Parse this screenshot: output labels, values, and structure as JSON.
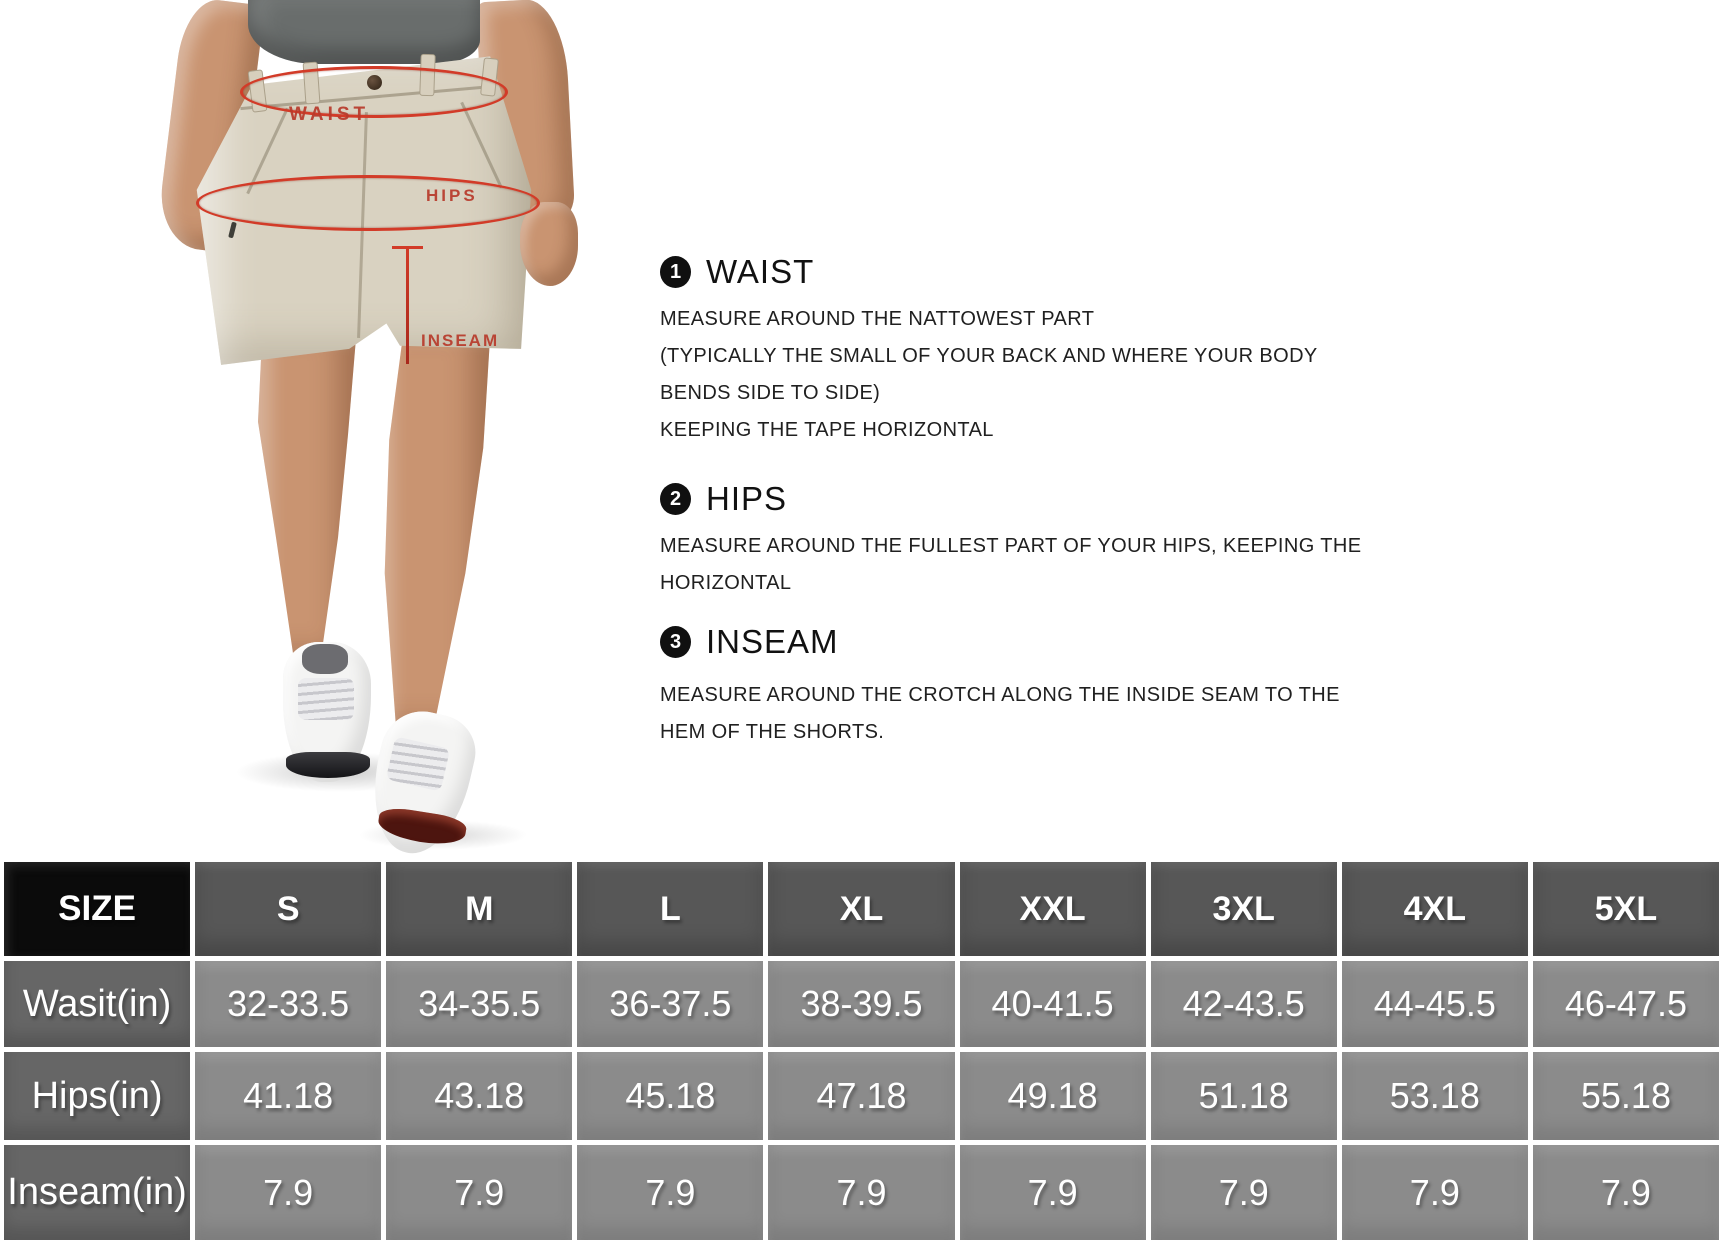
{
  "figure": {
    "annotations": {
      "waist": "WAIST",
      "hips": "HIPS",
      "inseam": "INSEAM"
    },
    "colors": {
      "annotation_red": "#d23b28",
      "label_red": "#b83a2b",
      "shorts_khaki": "#d9d2c1",
      "shirt_gray": "#696d6c",
      "skin_tan": "#c99471",
      "shoe_white": "#f4f4f3",
      "sole_maroon": "#4d150f"
    }
  },
  "instructions": {
    "sections": [
      {
        "number": "1",
        "title": "WAIST",
        "lines": [
          "MEASURE AROUND THE NATTOWEST PART",
          "(TYPICALLY THE SMALL OF YOUR BACK AND WHERE YOUR BODY",
          "BENDS SIDE TO SIDE)",
          "KEEPING THE TAPE HORIZONTAL"
        ]
      },
      {
        "number": "2",
        "title": "HIPS",
        "lines": [
          "MEASURE AROUND THE FULLEST PART OF YOUR HIPS, KEEPING THE",
          "HORIZONTAL"
        ]
      },
      {
        "number": "3",
        "title": "INSEAM",
        "lines": [
          "MEASURE AROUND THE CROTCH ALONG THE INSIDE SEAM TO THE",
          "HEM OF THE SHORTS."
        ]
      }
    ]
  },
  "size_table": {
    "columns": [
      "SIZE",
      "S",
      "M",
      "L",
      "XL",
      "XXL",
      "3XL",
      "4XL",
      "5XL"
    ],
    "rows": [
      {
        "label": "Wasit(in)",
        "values": [
          "32-33.5",
          "34-35.5",
          "36-37.5",
          "38-39.5",
          "40-41.5",
          "42-43.5",
          "44-45.5",
          "46-47.5"
        ]
      },
      {
        "label": "Hips(in)",
        "values": [
          "41.18",
          "43.18",
          "45.18",
          "47.18",
          "49.18",
          "51.18",
          "53.18",
          "55.18"
        ]
      },
      {
        "label": "Inseam(in)",
        "values": [
          "7.9",
          "7.9",
          "7.9",
          "7.9",
          "7.9",
          "7.9",
          "7.9",
          "7.9"
        ]
      }
    ],
    "colors": {
      "size_cell_bg": "#0b0b0b",
      "header_cell_bg": "#575757",
      "label_cell_bg": "#666666",
      "value_cell_bg": "#8b8b8b",
      "grid_line": "#ffffff",
      "text": "#ffffff"
    }
  }
}
